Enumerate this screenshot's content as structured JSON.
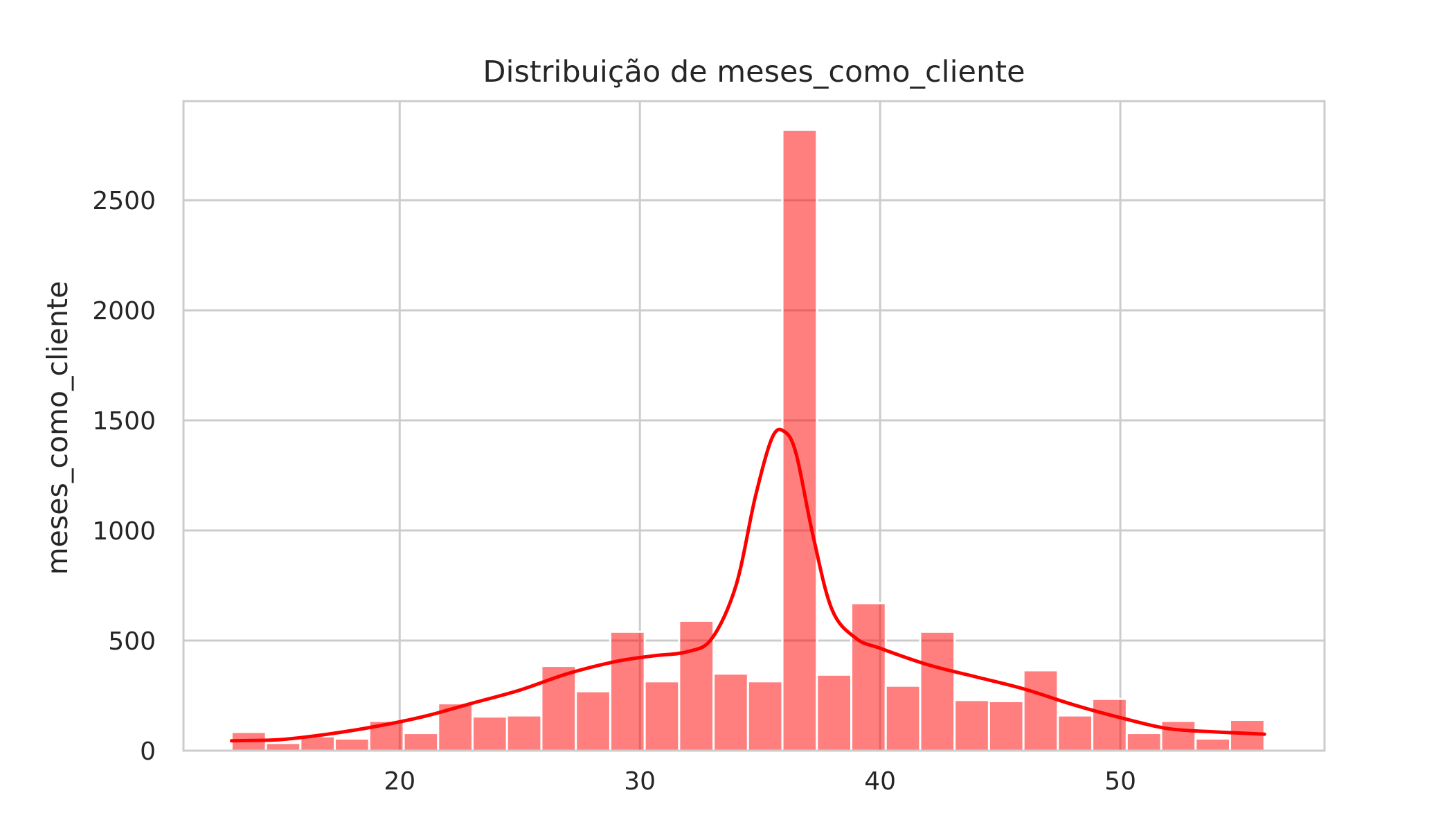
{
  "chart_data": {
    "type": "bar",
    "subtype": "histogram-with-kde",
    "title": "Distribuição de meses_como_cliente",
    "xlabel": "",
    "ylabel": "meses_como_cliente",
    "xlim": [
      11,
      58.5
    ],
    "ylim": [
      0,
      2950
    ],
    "xticks": [
      20,
      30,
      40,
      50
    ],
    "yticks": [
      0,
      500,
      1000,
      1500,
      2000,
      2500
    ],
    "grid": true,
    "legend": "none",
    "bar_color": "#ff0000",
    "bar_opacity": 0.5,
    "line_color": "#ff0000",
    "bin_edges": [
      13.0,
      14.433,
      15.867,
      17.3,
      18.733,
      20.167,
      21.6,
      23.033,
      24.467,
      25.9,
      27.333,
      28.767,
      30.2,
      31.633,
      33.067,
      34.5,
      35.933,
      37.367,
      38.8,
      40.233,
      41.667,
      43.1,
      44.533,
      45.967,
      47.4,
      48.833,
      50.267,
      51.7,
      53.133,
      54.567,
      56.0
    ],
    "counts": [
      85,
      35,
      65,
      55,
      135,
      80,
      215,
      155,
      160,
      385,
      270,
      540,
      315,
      590,
      350,
      315,
      2820,
      345,
      670,
      295,
      540,
      230,
      225,
      365,
      160,
      235,
      80,
      135,
      55,
      140
    ],
    "kde": {
      "x": [
        13.0,
        15.0,
        17.0,
        19.0,
        21.0,
        23.0,
        25.0,
        27.0,
        29.0,
        30.5,
        32.0,
        33.0,
        34.0,
        34.8,
        35.5,
        36.0,
        36.5,
        37.2,
        38.0,
        39.0,
        40.0,
        42.0,
        44.0,
        46.0,
        48.0,
        50.0,
        52.0,
        54.0,
        56.0
      ],
      "y": [
        45,
        50,
        75,
        110,
        155,
        215,
        275,
        350,
        405,
        430,
        450,
        510,
        750,
        1150,
        1420,
        1450,
        1350,
        980,
        640,
        510,
        465,
        390,
        335,
        280,
        210,
        150,
        100,
        85,
        75
      ]
    }
  }
}
